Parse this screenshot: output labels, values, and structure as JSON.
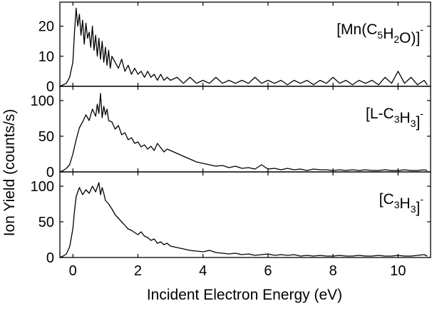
{
  "chart_data": [
    {
      "type": "line",
      "panel": "top",
      "label_parts": [
        {
          "t": "[Mn(C",
          "s": "n"
        },
        {
          "t": "5",
          "s": "sub"
        },
        {
          "t": "H",
          "s": "n"
        },
        {
          "t": "2",
          "s": "sub"
        },
        {
          "t": "O)]",
          "s": "n"
        },
        {
          "t": "-",
          "s": "sup"
        }
      ],
      "ylim": [
        0,
        28
      ],
      "yticks": [
        0,
        10,
        20
      ],
      "x": [
        -0.4,
        -0.3,
        -0.2,
        -0.1,
        0.0,
        0.05,
        0.1,
        0.15,
        0.2,
        0.25,
        0.3,
        0.35,
        0.4,
        0.45,
        0.5,
        0.55,
        0.6,
        0.65,
        0.7,
        0.75,
        0.8,
        0.85,
        0.9,
        0.95,
        1.0,
        1.05,
        1.1,
        1.15,
        1.2,
        1.3,
        1.4,
        1.5,
        1.6,
        1.7,
        1.8,
        1.9,
        2.0,
        2.1,
        2.2,
        2.3,
        2.4,
        2.5,
        2.6,
        2.7,
        2.8,
        2.9,
        3.0,
        3.2,
        3.4,
        3.6,
        3.8,
        4.0,
        4.2,
        4.4,
        4.6,
        4.8,
        5.0,
        5.2,
        5.4,
        5.6,
        5.8,
        6.0,
        6.2,
        6.4,
        6.6,
        6.8,
        7.0,
        7.2,
        7.4,
        7.6,
        7.8,
        8.0,
        8.2,
        8.4,
        8.6,
        8.8,
        9.0,
        9.2,
        9.4,
        9.6,
        9.8,
        10.0,
        10.2,
        10.4,
        10.6,
        10.8,
        10.9
      ],
      "y": [
        0,
        0.5,
        1,
        3,
        8,
        18,
        26,
        20,
        24,
        17,
        22,
        14,
        21,
        16,
        18,
        13,
        20,
        12,
        17,
        10,
        16,
        9,
        15,
        8,
        13,
        7,
        12,
        6,
        10,
        8,
        6,
        9,
        5,
        7,
        4,
        6,
        4,
        5,
        3,
        5,
        3,
        4,
        2,
        4,
        2,
        3,
        2,
        3,
        1,
        3,
        1,
        2,
        1,
        3,
        1,
        2,
        1,
        2,
        1,
        3,
        1,
        2,
        1,
        2,
        0.5,
        2,
        1,
        2,
        0.5,
        2,
        1,
        3,
        1,
        2,
        0.5,
        2,
        1,
        2,
        0.5,
        3,
        1,
        5,
        1,
        3,
        0.5,
        2,
        0.5
      ]
    },
    {
      "type": "line",
      "panel": "middle",
      "label_parts": [
        {
          "t": "[L-C",
          "s": "n"
        },
        {
          "t": "3",
          "s": "sub"
        },
        {
          "t": "H",
          "s": "n"
        },
        {
          "t": "3",
          "s": "sub"
        },
        {
          "t": "]",
          "s": "n"
        },
        {
          "t": "-",
          "s": "sup"
        }
      ],
      "ylim": [
        0,
        120
      ],
      "yticks": [
        0,
        50,
        100
      ],
      "x": [
        -0.4,
        -0.3,
        -0.2,
        -0.1,
        0.0,
        0.1,
        0.2,
        0.3,
        0.4,
        0.5,
        0.6,
        0.7,
        0.75,
        0.8,
        0.85,
        0.9,
        0.95,
        1.0,
        1.05,
        1.1,
        1.2,
        1.3,
        1.4,
        1.5,
        1.6,
        1.7,
        1.8,
        1.9,
        2.0,
        2.1,
        2.2,
        2.3,
        2.4,
        2.5,
        2.6,
        2.7,
        2.8,
        2.9,
        3.0,
        3.1,
        3.2,
        3.4,
        3.6,
        3.8,
        4.0,
        4.2,
        4.4,
        4.6,
        4.8,
        5.0,
        5.2,
        5.4,
        5.6,
        5.8,
        6.0,
        6.2,
        6.4,
        6.6,
        6.8,
        7.0,
        7.2,
        7.4,
        7.6,
        7.8,
        8.0,
        8.2,
        8.4,
        8.6,
        8.8,
        9.0,
        9.2,
        9.4,
        9.6,
        9.8,
        10.0,
        10.2,
        10.4,
        10.6,
        10.8,
        10.9
      ],
      "y": [
        0,
        2,
        5,
        10,
        25,
        45,
        62,
        70,
        80,
        72,
        88,
        78,
        95,
        82,
        110,
        76,
        92,
        80,
        88,
        72,
        70,
        60,
        65,
        52,
        55,
        45,
        48,
        40,
        42,
        35,
        38,
        32,
        36,
        30,
        40,
        34,
        28,
        32,
        30,
        28,
        26,
        22,
        18,
        14,
        12,
        10,
        8,
        9,
        6,
        8,
        5,
        6,
        4,
        10,
        4,
        5,
        3,
        5,
        3,
        4,
        2,
        4,
        3,
        3,
        2,
        3,
        2,
        3,
        2,
        3,
        2,
        2,
        3,
        2,
        2,
        3,
        2,
        2,
        3,
        2
      ]
    },
    {
      "type": "line",
      "panel": "bottom",
      "label_parts": [
        {
          "t": "[C",
          "s": "n"
        },
        {
          "t": "3",
          "s": "sub"
        },
        {
          "t": "H",
          "s": "n"
        },
        {
          "t": "3",
          "s": "sub"
        },
        {
          "t": "]",
          "s": "n"
        },
        {
          "t": "-",
          "s": "sup"
        }
      ],
      "ylim": [
        0,
        120
      ],
      "yticks": [
        0,
        50,
        100
      ],
      "x": [
        -0.4,
        -0.3,
        -0.2,
        -0.1,
        0.0,
        0.05,
        0.1,
        0.15,
        0.2,
        0.3,
        0.4,
        0.5,
        0.6,
        0.7,
        0.8,
        0.85,
        0.9,
        0.95,
        1.0,
        1.1,
        1.2,
        1.3,
        1.4,
        1.5,
        1.6,
        1.7,
        1.8,
        1.9,
        2.0,
        2.1,
        2.2,
        2.3,
        2.4,
        2.5,
        2.6,
        2.7,
        2.8,
        2.9,
        3.0,
        3.2,
        3.4,
        3.6,
        3.8,
        4.0,
        4.2,
        4.4,
        4.6,
        4.8,
        5.0,
        5.2,
        5.4,
        5.6,
        5.8,
        6.0,
        6.2,
        6.4,
        6.6,
        6.8,
        7.0,
        7.2,
        7.4,
        7.6,
        7.8,
        8.0,
        8.2,
        8.4,
        8.6,
        8.8,
        9.0,
        9.2,
        9.4,
        9.6,
        9.8,
        10.0,
        10.2,
        10.4,
        10.6,
        10.8,
        10.9
      ],
      "y": [
        0,
        2,
        5,
        15,
        40,
        65,
        85,
        92,
        98,
        88,
        95,
        90,
        100,
        92,
        105,
        88,
        98,
        90,
        80,
        75,
        68,
        60,
        55,
        50,
        45,
        40,
        38,
        35,
        32,
        36,
        30,
        28,
        24,
        26,
        20,
        22,
        18,
        20,
        16,
        14,
        12,
        10,
        9,
        8,
        10,
        7,
        6,
        5,
        6,
        4,
        5,
        3,
        4,
        5,
        3,
        4,
        3,
        4,
        2,
        3,
        2,
        3,
        2,
        2,
        3,
        2,
        2,
        3,
        2,
        2,
        3,
        2,
        2,
        3,
        2,
        2,
        3,
        4,
        2
      ]
    }
  ],
  "x_axis": {
    "label": "Incident Electron Energy (eV)",
    "xlim": [
      -0.4,
      11.0
    ],
    "ticks": [
      0,
      2,
      4,
      6,
      8,
      10
    ]
  },
  "y_axis": {
    "label": "Ion Yield (counts/s)"
  },
  "line_color": "#000000"
}
